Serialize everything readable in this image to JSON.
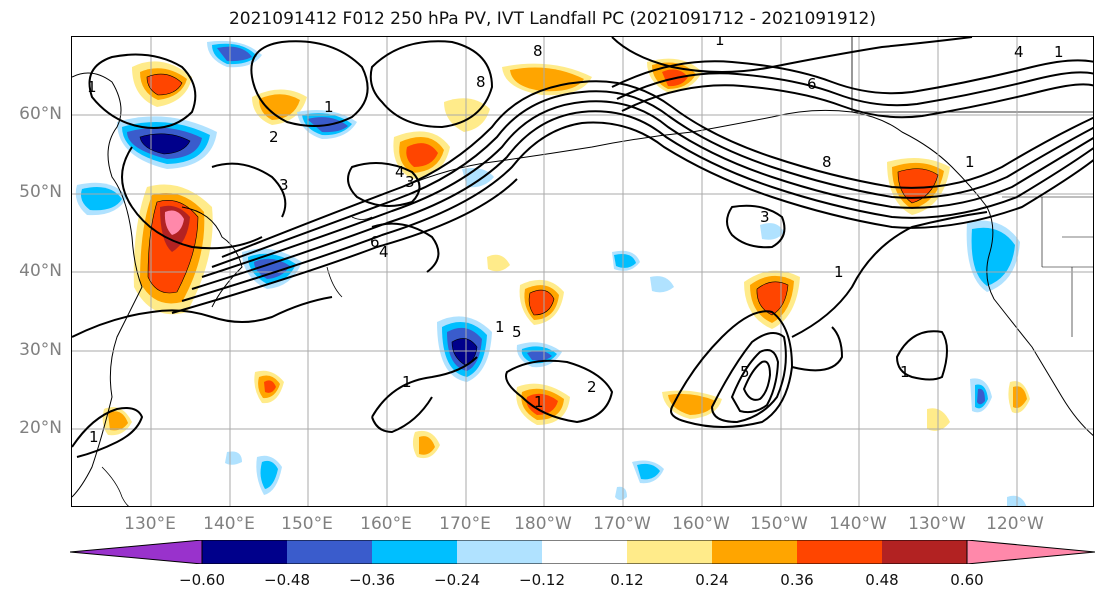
{
  "title": "2021091412 F012 250 hPa PV, IVT Landfall PC (2021091712 - 2021091912)",
  "lat_labels": [
    "60°N",
    "50°N",
    "40°N",
    "30°N",
    "20°N"
  ],
  "lon_labels": [
    "130°E",
    "140°E",
    "150°E",
    "160°E",
    "170°E",
    "180°W",
    "170°W",
    "160°W",
    "150°W",
    "140°W",
    "130°W",
    "120°W"
  ],
  "colorbar": {
    "tick_labels": [
      "−0.60",
      "−0.48",
      "−0.36",
      "−0.24",
      "−0.12",
      "0.12",
      "0.24",
      "0.36",
      "0.48",
      "0.60"
    ],
    "colors": [
      "#9932cc",
      "#00008b",
      "#3a5ccc",
      "#00bfff",
      "#b0e2ff",
      "#ffffff",
      "#ffeb8a",
      "#ffa500",
      "#ff4500",
      "#b22222",
      "#ff88aa"
    ],
    "extend": "both"
  },
  "contour_labels": [
    "1",
    "1",
    "2",
    "3",
    "4",
    "4",
    "5",
    "6",
    "8",
    "8",
    "3",
    "3",
    "1",
    "1",
    "1",
    "1",
    "2",
    "1",
    "1",
    "8",
    "6",
    "4",
    "1",
    "1",
    "5",
    "1"
  ],
  "map": {
    "projection": "plate carree",
    "extent_lon": "125°E - 115°W",
    "extent_lat": "10°N - 70°N",
    "grid": true
  }
}
